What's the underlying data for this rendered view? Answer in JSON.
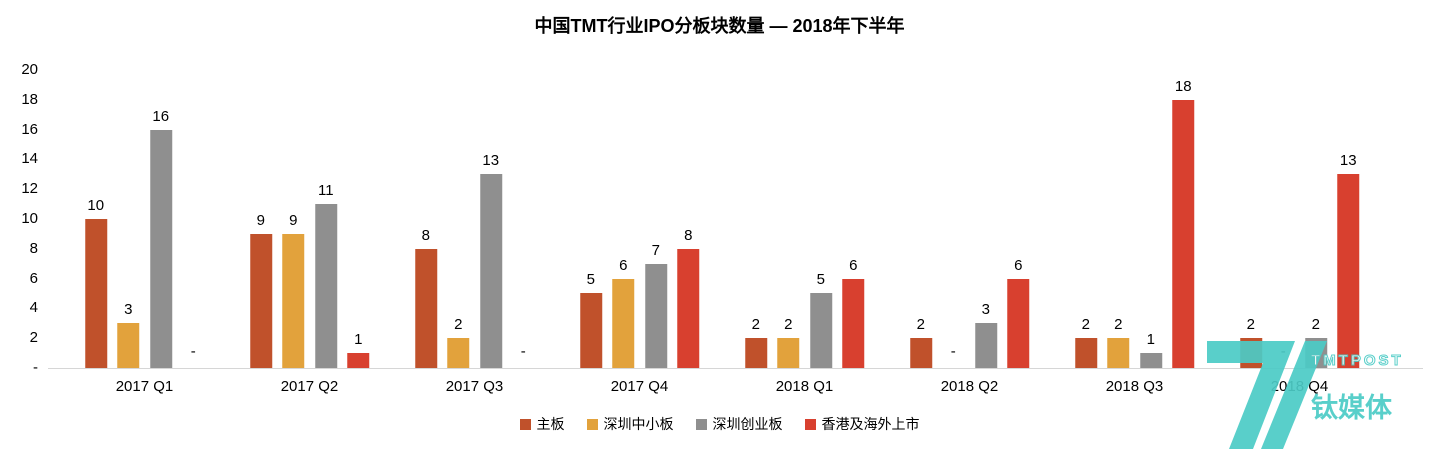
{
  "chart_data": {
    "type": "bar",
    "title": "中国TMT行业IPO分板块数量 — 2018年下半年",
    "categories": [
      "2017 Q1",
      "2017 Q2",
      "2017 Q3",
      "2017 Q4",
      "2018 Q1",
      "2018 Q2",
      "2018 Q3",
      "2018 Q4"
    ],
    "series": [
      {
        "name": "主板",
        "color": "#C0512B",
        "values": [
          10,
          9,
          8,
          5,
          2,
          2,
          2,
          2
        ]
      },
      {
        "name": "深圳中小板",
        "color": "#E2A23C",
        "values": [
          3,
          9,
          2,
          6,
          2,
          0,
          2,
          0
        ]
      },
      {
        "name": "深圳创业板",
        "color": "#8F8F8F",
        "values": [
          16,
          11,
          13,
          7,
          5,
          3,
          1,
          2
        ]
      },
      {
        "name": "香港及海外上市",
        "color": "#D8402F",
        "values": [
          0,
          1,
          0,
          8,
          6,
          6,
          18,
          13
        ]
      }
    ],
    "ylim": [
      0,
      20
    ],
    "y_ticks": [
      "20",
      "18",
      "16",
      "14",
      "12",
      "10",
      "8",
      "6",
      "4",
      "2",
      "-"
    ],
    "zero_label": "-",
    "grid": false,
    "legend_position": "bottom"
  },
  "watermark": {
    "brand": "TMTPOST",
    "brand_cn": "钛媒体",
    "color": "#4CCBC6"
  }
}
